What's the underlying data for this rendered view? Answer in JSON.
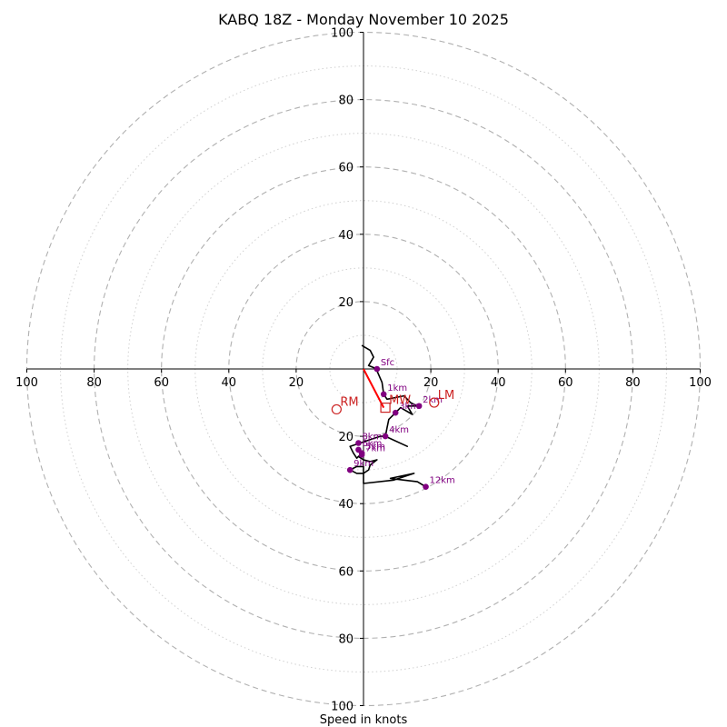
{
  "chart_data": {
    "type": "hodograph",
    "title": "KABQ 18Z - Monday November 10 2025",
    "xlabel": "Speed in knots",
    "xlim": [
      -100,
      100
    ],
    "ylim": [
      -100,
      100
    ],
    "major_rings": [
      20,
      40,
      60,
      80,
      100
    ],
    "minor_rings": [
      10,
      30,
      50,
      70,
      90
    ],
    "x_ticks": [
      {
        "value": -100,
        "label": "100"
      },
      {
        "value": -80,
        "label": "80"
      },
      {
        "value": -60,
        "label": "60"
      },
      {
        "value": -40,
        "label": "40"
      },
      {
        "value": -20,
        "label": "20"
      },
      {
        "value": 20,
        "label": "20"
      },
      {
        "value": 40,
        "label": "40"
      },
      {
        "value": 60,
        "label": "60"
      },
      {
        "value": 80,
        "label": "80"
      },
      {
        "value": 100,
        "label": "100"
      }
    ],
    "y_ticks": [
      {
        "value": 100,
        "label": "100"
      },
      {
        "value": 80,
        "label": "80"
      },
      {
        "value": 60,
        "label": "60"
      },
      {
        "value": 40,
        "label": "40"
      },
      {
        "value": 20,
        "label": "20"
      },
      {
        "value": -20,
        "label": "20"
      },
      {
        "value": -40,
        "label": "40"
      },
      {
        "value": -60,
        "label": "60"
      },
      {
        "value": -80,
        "label": "80"
      },
      {
        "value": -100,
        "label": "100"
      }
    ],
    "wind_profile": [
      [
        -0.5,
        7
      ],
      [
        2,
        5.5
      ],
      [
        3,
        3.5
      ],
      [
        1.5,
        1
      ],
      [
        4,
        0
      ],
      [
        4,
        -0.5
      ],
      [
        5.5,
        -4
      ],
      [
        6,
        -7.5
      ],
      [
        7,
        -9
      ],
      [
        9.5,
        -8.5
      ],
      [
        12,
        -8
      ],
      [
        14,
        -10
      ],
      [
        16,
        -11
      ],
      [
        17,
        -11
      ],
      [
        13,
        -11
      ],
      [
        14.5,
        -13.5
      ],
      [
        11,
        -11.5
      ],
      [
        9.5,
        -13
      ],
      [
        7.5,
        -15
      ],
      [
        7,
        -17.5
      ],
      [
        6.5,
        -20
      ],
      [
        13,
        -23
      ],
      [
        6.5,
        -20
      ],
      [
        5,
        -20
      ],
      [
        2,
        -21
      ],
      [
        -1,
        -22
      ],
      [
        -4,
        -23
      ],
      [
        -3,
        -25
      ],
      [
        -2,
        -26.5
      ],
      [
        -1.5,
        -26
      ],
      [
        0,
        -25
      ],
      [
        -1.5,
        -26
      ],
      [
        0,
        -27
      ],
      [
        2,
        -27.5
      ],
      [
        4,
        -27
      ],
      [
        2,
        -28.5
      ],
      [
        1.5,
        -30
      ],
      [
        0,
        -31
      ],
      [
        -2,
        -31
      ],
      [
        -4,
        -30
      ],
      [
        -2,
        -29
      ],
      [
        0,
        -29
      ],
      [
        0,
        -31
      ],
      [
        0,
        -34
      ],
      [
        9,
        -33
      ],
      [
        15,
        -31
      ],
      [
        8,
        -32.5
      ],
      [
        12,
        -33
      ],
      [
        16,
        -33.5
      ],
      [
        18.5,
        -35
      ]
    ],
    "height_markers": [
      {
        "label": "Sfc",
        "u": 4,
        "v": 0
      },
      {
        "label": "1km",
        "u": 6,
        "v": -7.5
      },
      {
        "label": "2km",
        "u": 16.5,
        "v": -11
      },
      {
        "label": "3km",
        "u": 9.5,
        "v": -13
      },
      {
        "label": "4km",
        "u": 6.5,
        "v": -20
      },
      {
        "label": "5km",
        "u": -0.5,
        "v": -25
      },
      {
        "label": "6km",
        "u": -1.5,
        "v": -24
      },
      {
        "label": "7km",
        "u": -0.5,
        "v": -25.5
      },
      {
        "label": "8km",
        "u": -1.5,
        "v": -22
      },
      {
        "label": "9km",
        "u": -4,
        "v": -30
      },
      {
        "label": "12km",
        "u": 18.5,
        "v": -35
      }
    ],
    "storm_motions": [
      {
        "label": "RM",
        "u": -8,
        "v": -12,
        "marker": "circle"
      },
      {
        "label": "LM",
        "u": 21,
        "v": -10,
        "marker": "circle"
      },
      {
        "label": "MW",
        "u": 6.5,
        "v": -11.5,
        "marker": "square"
      }
    ],
    "shear_vector": {
      "from": [
        0,
        0
      ],
      "to": [
        6,
        -11.5
      ]
    },
    "colors": {
      "profile": "#000000",
      "markers": "#800080",
      "motion": "#cc2222",
      "shear": "#ff0000",
      "major_ring": "#b0b0b0",
      "minor_ring": "#d0d0d0"
    }
  }
}
